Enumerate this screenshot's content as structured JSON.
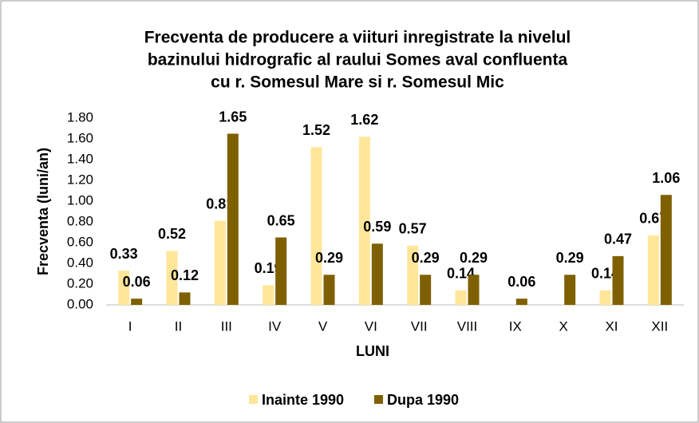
{
  "chart_data": {
    "type": "bar",
    "title": [
      "Frecventa de producere a viituri inregistrate la nivelul",
      "bazinului hidrografic al raului Somes aval confluenta",
      "cu r. Somesul Mare si r. Somesul Mic"
    ],
    "y_label": "Frecventa (luni/an)",
    "x_label": "LUNI",
    "categories": [
      "I",
      "II",
      "III",
      "IV",
      "V",
      "VI",
      "VII",
      "VIII",
      "IX",
      "X",
      "XI",
      "XII"
    ],
    "series": [
      {
        "name": "Inainte 1990",
        "color": "#ffe699",
        "values": [
          0.33,
          0.52,
          0.81,
          0.19,
          1.52,
          1.62,
          0.57,
          0.14,
          null,
          null,
          0.14,
          0.67
        ]
      },
      {
        "name": "Dupa 1990",
        "color": "#7f6000",
        "values": [
          0.06,
          0.12,
          1.65,
          0.65,
          0.29,
          0.59,
          0.29,
          0.29,
          0.06,
          0.29,
          0.47,
          1.06
        ]
      }
    ],
    "ylim": [
      0,
      1.8
    ],
    "yticks": [
      {
        "value": 0,
        "label": "0.00"
      },
      {
        "value": 0.2,
        "label": "0.20"
      },
      {
        "value": 0.4,
        "label": "0.40"
      },
      {
        "value": 0.6,
        "label": "0.60"
      },
      {
        "value": 0.8,
        "label": "0.80"
      },
      {
        "value": 1,
        "label": "1.00"
      },
      {
        "value": 1.2,
        "label": "1.20"
      },
      {
        "value": 1.4,
        "label": "1.40"
      },
      {
        "value": 1.6,
        "label": "1.60"
      },
      {
        "value": 1.8,
        "label": "1.80"
      }
    ],
    "grid": false,
    "legend": "bottom"
  }
}
